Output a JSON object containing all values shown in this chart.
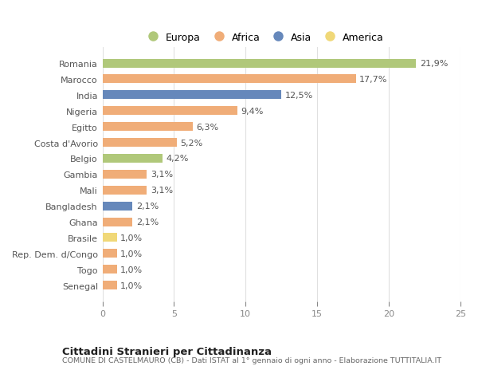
{
  "countries": [
    "Senegal",
    "Togo",
    "Rep. Dem. d/Congo",
    "Brasile",
    "Ghana",
    "Bangladesh",
    "Mali",
    "Gambia",
    "Belgio",
    "Costa d'Avorio",
    "Egitto",
    "Nigeria",
    "India",
    "Marocco",
    "Romania"
  ],
  "values": [
    1.0,
    1.0,
    1.0,
    1.0,
    2.1,
    2.1,
    3.1,
    3.1,
    4.2,
    5.2,
    6.3,
    9.4,
    12.5,
    17.7,
    21.9
  ],
  "labels": [
    "1,0%",
    "1,0%",
    "1,0%",
    "1,0%",
    "2,1%",
    "2,1%",
    "3,1%",
    "3,1%",
    "4,2%",
    "5,2%",
    "6,3%",
    "9,4%",
    "12,5%",
    "17,7%",
    "21,9%"
  ],
  "colors": [
    "#f0ad78",
    "#f0ad78",
    "#f0ad78",
    "#f0d878",
    "#f0ad78",
    "#6688bb",
    "#f0ad78",
    "#f0ad78",
    "#b0c87a",
    "#f0ad78",
    "#f0ad78",
    "#f0ad78",
    "#6688bb",
    "#f0ad78",
    "#b0c87a"
  ],
  "continent_colors": {
    "Europa": "#b0c87a",
    "Africa": "#f0ad78",
    "Asia": "#6688bb",
    "America": "#f0d878"
  },
  "title": "Cittadini Stranieri per Cittadinanza",
  "subtitle": "COMUNE DI CASTELMAURO (CB) - Dati ISTAT al 1° gennaio di ogni anno - Elaborazione TUTTITALIA.IT",
  "xlim": [
    0,
    25
  ],
  "xticks": [
    0,
    5,
    10,
    15,
    20,
    25
  ],
  "background_color": "#ffffff",
  "bar_height": 0.55,
  "label_fontsize": 8,
  "tick_fontsize": 8,
  "ylabel_fontsize": 8
}
